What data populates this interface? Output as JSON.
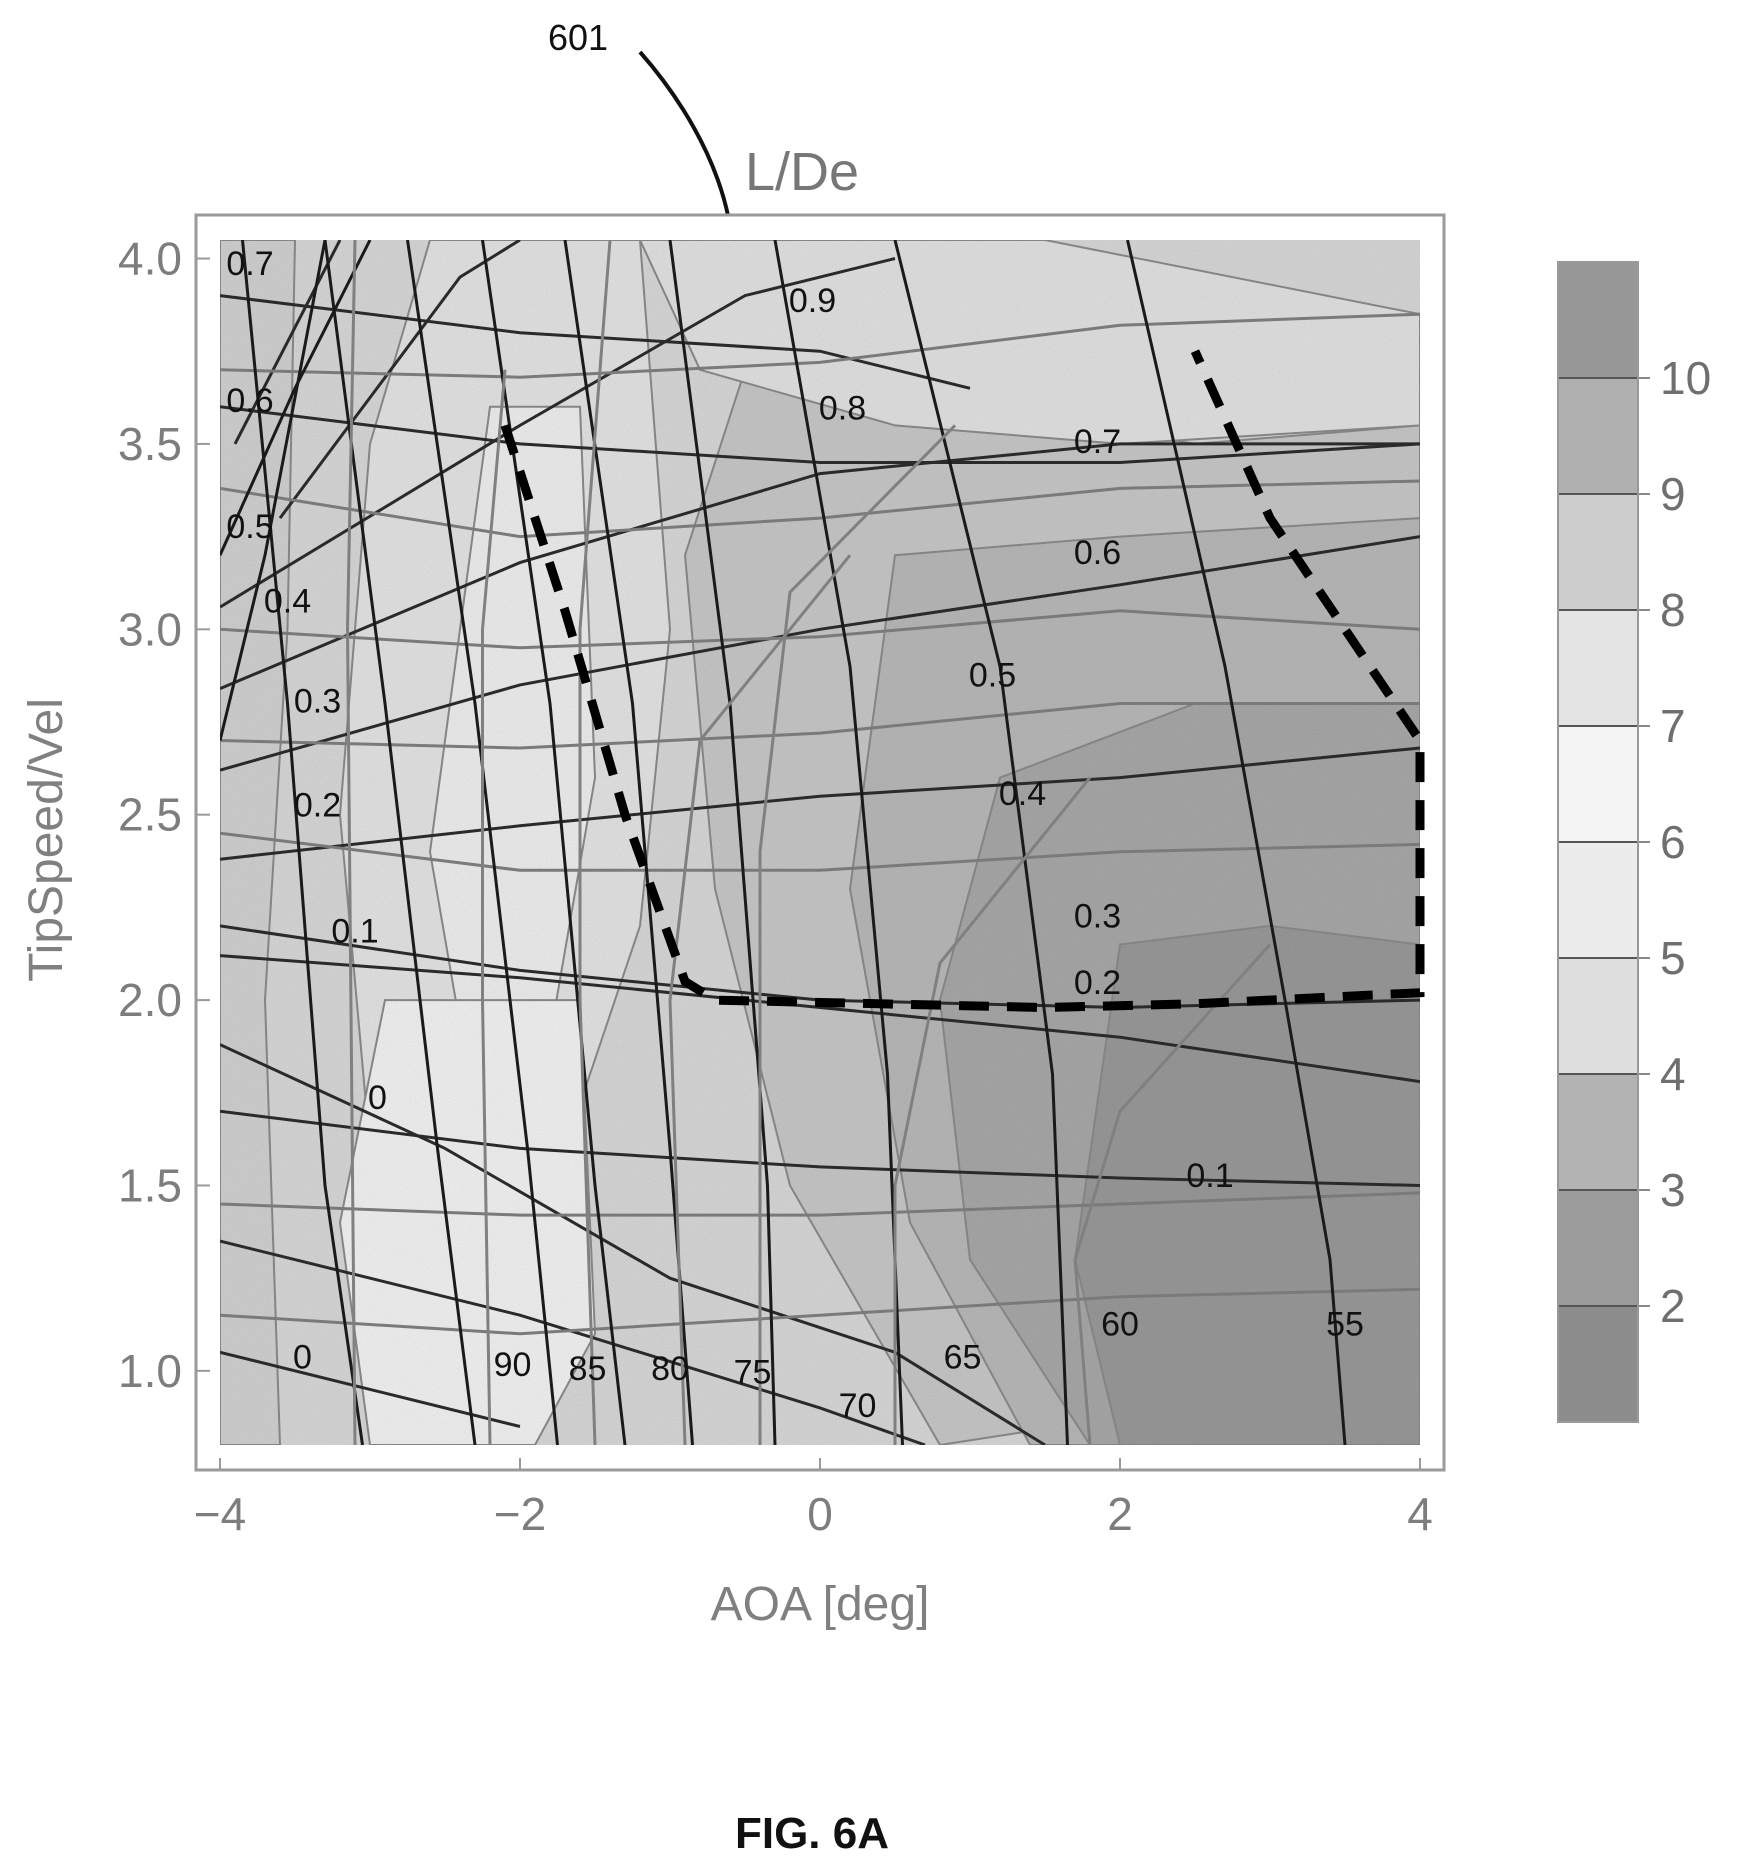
{
  "figure": {
    "reference_label": "601",
    "caption": "FIG.  6A"
  },
  "chart_data": {
    "type": "heatmap",
    "title": "L/De",
    "xlabel": "AOA [deg]",
    "ylabel": "TipSpeed/Vel",
    "xlim": [
      -4,
      4
    ],
    "ylim": [
      0.8,
      4.05
    ],
    "x_ticks": [
      "−4",
      "−2",
      "0",
      "2",
      "4"
    ],
    "y_ticks": [
      "1.0",
      "1.5",
      "2.0",
      "2.5",
      "3.0",
      "3.5",
      "4.0"
    ],
    "colorbar": {
      "ticks": [
        "2",
        "3",
        "4",
        "5",
        "6",
        "7",
        "8",
        "9",
        "10"
      ],
      "range": [
        1,
        11
      ]
    },
    "advance_ratio_labels": [
      {
        "text": "0.7",
        "x": -3.8,
        "y": 3.98
      },
      {
        "text": "0.6",
        "x": -3.8,
        "y": 3.61
      },
      {
        "text": "0.5",
        "x": -3.8,
        "y": 3.27
      },
      {
        "text": "0.4",
        "x": -3.55,
        "y": 3.07
      },
      {
        "text": "0.3",
        "x": -3.35,
        "y": 2.8
      },
      {
        "text": "0.2",
        "x": -3.35,
        "y": 2.52
      },
      {
        "text": "0.1",
        "x": -3.1,
        "y": 2.18
      },
      {
        "text": "0",
        "x": -2.95,
        "y": 1.73
      },
      {
        "text": "0",
        "x": -3.45,
        "y": 1.03
      },
      {
        "text": "0.9",
        "x": -0.05,
        "y": 3.88
      },
      {
        "text": "0.8",
        "x": 0.15,
        "y": 3.59
      },
      {
        "text": "0.7",
        "x": 1.85,
        "y": 3.5
      },
      {
        "text": "0.6",
        "x": 1.85,
        "y": 3.2
      },
      {
        "text": "0.5",
        "x": 1.15,
        "y": 2.87
      },
      {
        "text": "0.4",
        "x": 1.35,
        "y": 2.55
      },
      {
        "text": "0.3",
        "x": 1.85,
        "y": 2.22
      },
      {
        "text": "0.2",
        "x": 1.85,
        "y": 2.04
      },
      {
        "text": "0.1",
        "x": 2.6,
        "y": 1.52
      }
    ],
    "pitch_angle_labels": [
      {
        "text": "90",
        "x": -2.05,
        "y": 1.01
      },
      {
        "text": "85",
        "x": -1.55,
        "y": 1.0
      },
      {
        "text": "80",
        "x": -1.0,
        "y": 1.0
      },
      {
        "text": "75",
        "x": -0.45,
        "y": 0.99
      },
      {
        "text": "70",
        "x": 0.25,
        "y": 0.9
      },
      {
        "text": "65",
        "x": 0.95,
        "y": 1.03
      },
      {
        "text": "60",
        "x": 2.0,
        "y": 1.12
      },
      {
        "text": "55",
        "x": 3.5,
        "y": 1.12
      }
    ],
    "advance_ratio_levels": [
      0,
      0.1,
      0.2,
      0.3,
      0.4,
      0.5,
      0.6,
      0.7,
      0.8,
      0.9
    ],
    "pitch_angle_levels": [
      90,
      85,
      80,
      75,
      70,
      65,
      60,
      55
    ],
    "operating_region_boundary": {
      "style": "dashed",
      "points": [
        [
          -2.1,
          3.55
        ],
        [
          -1.7,
          3.05
        ],
        [
          -1.3,
          2.5
        ],
        [
          -0.9,
          2.05
        ],
        [
          -0.7,
          2.0
        ],
        [
          1.5,
          1.98
        ],
        [
          2.5,
          1.99
        ],
        [
          4.0,
          2.02
        ],
        [
          4.0,
          2.7
        ],
        [
          3.0,
          3.3
        ],
        [
          2.5,
          3.75
        ]
      ]
    },
    "grid": false
  }
}
